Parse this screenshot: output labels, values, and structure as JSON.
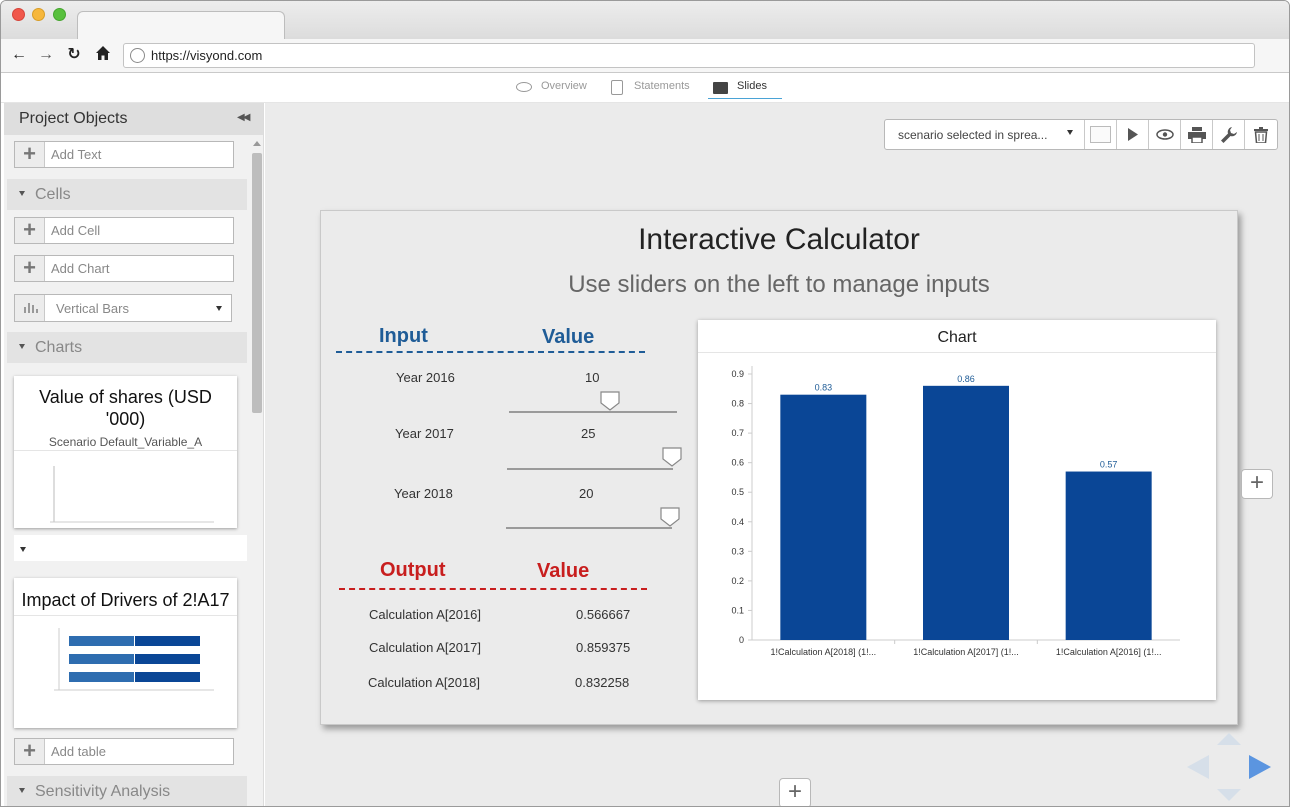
{
  "browser": {
    "url": "https://visyond.com",
    "tab_title": ""
  },
  "app_nav": {
    "tabs": [
      {
        "label": "Overview",
        "icon": "eye-icon"
      },
      {
        "label": "Statements",
        "icon": "clipboard-icon"
      },
      {
        "label": "Slides",
        "icon": "slides-icon",
        "active": true
      }
    ]
  },
  "sidebar": {
    "title": "Project Objects",
    "add_text": "Add Text",
    "cells_section": "Cells",
    "add_cell": "Add Cell",
    "add_chart": "Add Chart",
    "chart_type_select": "Vertical Bars",
    "charts_section": "Charts",
    "chart_card_1": {
      "title": "Value of shares (USD '000)",
      "subtitle": "Scenario Default_Variable_A"
    },
    "chart_card_2": {
      "title": "Impact of Drivers of 2!A17"
    },
    "add_table": "Add table",
    "sensitivity_section": "Sensitivity Analysis"
  },
  "toolbar": {
    "scenario_select": "scenario selected in sprea...",
    "icons": [
      "blank-icon",
      "play-icon",
      "eye-icon",
      "print-icon",
      "wrench-icon",
      "trash-icon"
    ]
  },
  "slide": {
    "title": "Interactive Calculator",
    "subtitle": "Use sliders on the left to manage inputs",
    "input_header": "Input",
    "value_header": "Value",
    "inputs": [
      {
        "label": "Year 2016",
        "value": "10"
      },
      {
        "label": "Year 2017",
        "value": "25"
      },
      {
        "label": "Year 2018",
        "value": "20"
      }
    ],
    "output_header": "Output",
    "output_value_header": "Value",
    "outputs": [
      {
        "label": "Calculation A[2016]",
        "value": "0.566667"
      },
      {
        "label": "Calculation A[2017]",
        "value": "0.859375"
      },
      {
        "label": "Calculation A[2018]",
        "value": "0.832258"
      }
    ],
    "chart_title": "Chart"
  },
  "colors": {
    "input_header": "#1f5c97",
    "output_header": "#c81e1e",
    "bar": "#0a4696",
    "bar_label": "#1f5c97",
    "nav_arrow": "#5b95e0"
  },
  "chart_data": {
    "type": "bar",
    "title": "Chart",
    "categories": [
      "1!Calculation A[2018] (1!...",
      "1!Calculation A[2017] (1!...",
      "1!Calculation A[2016] (1!..."
    ],
    "values": [
      0.83,
      0.86,
      0.57
    ],
    "data_labels": [
      "0.83",
      "0.86",
      "0.57"
    ],
    "ylim": [
      0,
      0.9
    ],
    "yticks": [
      0,
      0.1,
      0.2,
      0.3,
      0.4,
      0.5,
      0.6,
      0.7,
      0.8,
      0.9
    ],
    "ytick_labels": [
      "0",
      "0.1",
      "0.2",
      "0.3",
      "0.4",
      "0.5",
      "0.6",
      "0.7",
      "0.8",
      "0.9"
    ],
    "xlabel": "",
    "ylabel": "",
    "grid": false
  }
}
